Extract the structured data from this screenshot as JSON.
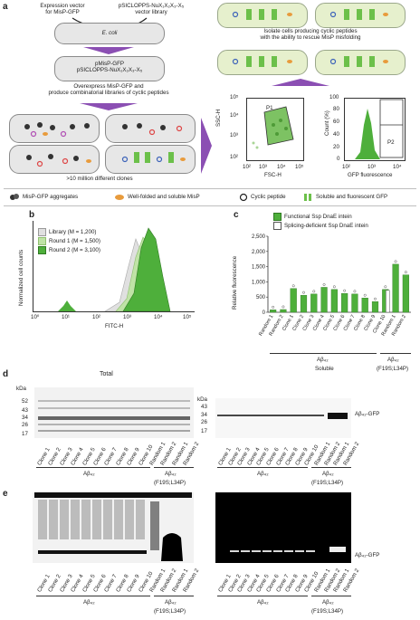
{
  "figure": {
    "panel_letters": [
      "a",
      "b",
      "c",
      "d",
      "e"
    ],
    "panel_a": {
      "expression_vector": "Expression vector\nfor MisP-GFP",
      "library_vector": "pSICLOPPS-NuX₁X₂X₃-X₅\nvector library",
      "ecoli": "E. coli",
      "cell2_line1": "pMisP-GFP",
      "cell2_line2": "pSICLOPPS-NuX₁X₂X₃-X₅",
      "overexpress": "Overexpress MisP-GFP and\nproduce combinatorial libraries of cyclic peptides",
      "clones": ">10 million different clones",
      "isolate": "Isolate cells producing cyclic peptides\nwith the ability to rescue MisP misfolding",
      "facs1": {
        "ylabel": "SSC-H",
        "xlabel": "FSC-H",
        "gate": "P1",
        "yticks": [
          "10⁵",
          "10⁴",
          "10³",
          "10²"
        ],
        "xticks": [
          "10²",
          "10³",
          "10⁴",
          "10⁵"
        ]
      },
      "facs2": {
        "ylabel": "Count (%)",
        "xlabel": "GFP fluorescence",
        "gate": "P2",
        "yticks": [
          "100",
          "80",
          "60",
          "40",
          "20",
          "0"
        ],
        "xticks": [
          "10²",
          "10³",
          "10⁴"
        ]
      }
    },
    "legend": [
      {
        "icon": "aggregate-icon",
        "label": "MisP-GFP aggregates"
      },
      {
        "icon": "folded-misp-icon",
        "label": "Well-folded and soluble MisP"
      },
      {
        "icon": "cyclic-peptide-icon",
        "label": "Cyclic peptide"
      },
      {
        "icon": "gfp-icon",
        "label": "Soluble and fluorescent GFP"
      }
    ],
    "panel_b": {
      "ylabel": "Normalized cell counts",
      "xlabel": "FITC-H",
      "xticks": [
        "10⁰",
        "10¹",
        "10²",
        "10³",
        "10⁴",
        "10⁵"
      ],
      "legend": [
        "Library (M = 1,200)",
        "Round 1 (M = 1,500)",
        "Round 2 (M = 3,100)"
      ]
    },
    "panel_d": {
      "title": "Total",
      "kda": "kDa",
      "markers": [
        "52",
        "43",
        "34",
        "26",
        "17"
      ],
      "marker_labels_right": [
        "43",
        "34",
        "26",
        "17"
      ],
      "band_label": "Aβ₄₂-GFP",
      "lanes": [
        "Clone 1",
        "Clone 2",
        "Clone 3",
        "Clone 4",
        "Clone 5",
        "Clone 6",
        "Clone 7",
        "Clone 8",
        "Clone 9",
        "Clone 10",
        "Random 1",
        "Random 2",
        "Random 1",
        "Random 2"
      ],
      "group1": "Aβ₄₂",
      "group2_line1": "Aβ₄₂",
      "group2_line2": "(F19S;L34P)"
    },
    "panel_e": {
      "band_label": "Aβ₄₂-GFP",
      "group1": "Aβ₄₂",
      "group2_line1": "Aβ₄₂",
      "group2_line2": "(F19S;L34P)"
    }
  },
  "chart_data": [
    {
      "panel": "c",
      "type": "bar",
      "ylabel": "Relative fluorescence",
      "xlabel": "Soluble",
      "ylim": [
        0,
        2500
      ],
      "yticks": [
        "0",
        "500",
        "1,000",
        "1,500",
        "2,000",
        "2,500"
      ],
      "categories": [
        "Random 1",
        "Random 2",
        "Clone 1",
        "Clone 2",
        "Clone 3",
        "Clone 4",
        "Clone 5",
        "Clone 6",
        "Clone 7",
        "Clone 8",
        "Clone 9",
        "Clone 10",
        "Random 1",
        "Random 2"
      ],
      "series": [
        {
          "name": "Functional Ssp DnaE intein",
          "values": [
            80,
            90,
            780,
            560,
            600,
            820,
            750,
            620,
            600,
            470,
            350,
            750,
            1580,
            1230
          ],
          "color": "#4eaf3b"
        },
        {
          "name": "Splicing-deficient Ssp DnaE intein",
          "values": [
            null,
            null,
            null,
            null,
            null,
            null,
            null,
            null,
            null,
            null,
            null,
            720,
            null,
            null
          ],
          "color": "#ffffff"
        }
      ],
      "group_labels": [
        "Aβ₄₂",
        "Aβ₄₂",
        "(F19S;L34P)"
      ]
    }
  ]
}
